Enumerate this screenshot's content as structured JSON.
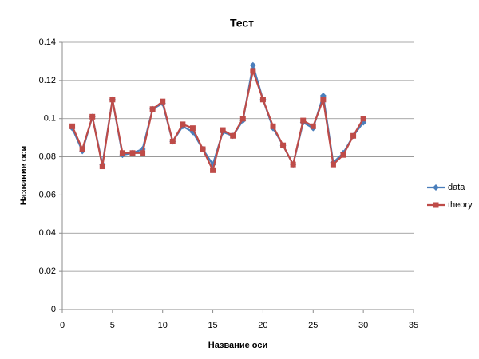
{
  "chart_data": {
    "type": "scatter-line",
    "title": "Тест",
    "x_label": "Название оси",
    "y_label": "Название оси",
    "x": [
      1,
      2,
      3,
      4,
      5,
      6,
      7,
      8,
      9,
      10,
      11,
      12,
      13,
      14,
      15,
      16,
      17,
      18,
      19,
      20,
      21,
      22,
      23,
      24,
      25,
      26,
      27,
      28,
      29,
      30
    ],
    "series": [
      {
        "name": "data",
        "color": "#4a7ebb",
        "marker": "diamond",
        "values": [
          0.095,
          0.083,
          0.101,
          0.076,
          0.11,
          0.081,
          0.082,
          0.084,
          0.105,
          0.108,
          0.088,
          0.096,
          0.093,
          0.084,
          0.076,
          0.093,
          0.091,
          0.099,
          0.128,
          0.11,
          0.095,
          0.086,
          0.076,
          0.098,
          0.095,
          0.112,
          0.077,
          0.082,
          0.091,
          0.098
        ]
      },
      {
        "name": "theory",
        "color": "#be4b48",
        "marker": "square",
        "values": [
          0.096,
          0.084,
          0.101,
          0.075,
          0.11,
          0.082,
          0.082,
          0.082,
          0.105,
          0.109,
          0.088,
          0.097,
          0.095,
          0.084,
          0.073,
          0.094,
          0.091,
          0.1,
          0.125,
          0.11,
          0.096,
          0.086,
          0.076,
          0.099,
          0.096,
          0.11,
          0.076,
          0.081,
          0.091,
          0.1
        ]
      }
    ],
    "xlim": [
      0,
      35
    ],
    "xticks": [
      0,
      5,
      10,
      15,
      20,
      25,
      30,
      35
    ],
    "ylim": [
      0,
      0.14
    ],
    "yticks": [
      0,
      0.02,
      0.04,
      0.06,
      0.08,
      0.1,
      0.12,
      0.14
    ],
    "grid": true,
    "legend": "right"
  }
}
